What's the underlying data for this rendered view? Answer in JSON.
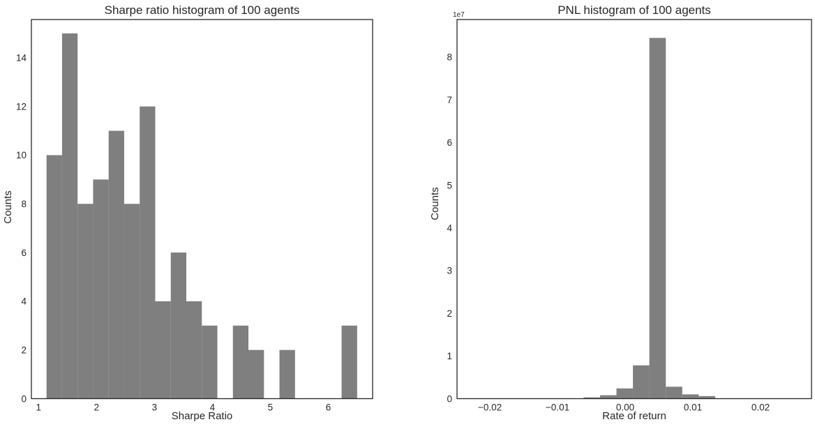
{
  "figure": {
    "background": "#ffffff",
    "bar_color": "#7f7f7f",
    "spine_color": "#262626",
    "text_color": "#262626"
  },
  "chart_data": [
    {
      "type": "bar",
      "subtype": "histogram",
      "title": "Sharpe ratio histogram of 100 agents",
      "xlabel": "Sharpe Ratio",
      "ylabel": "Counts",
      "y_offset_label": "",
      "bin_start": 1.137,
      "bin_width": 0.26805,
      "counts": [
        10,
        15,
        8,
        9,
        11,
        8,
        12,
        4,
        6,
        4,
        3,
        0,
        3,
        2,
        0,
        2,
        0,
        0,
        0,
        3
      ],
      "total_agents": 100,
      "xlim": [
        0.876,
        6.765
      ],
      "ylim": [
        0,
        15.57
      ],
      "xticks": [
        1,
        2,
        3,
        4,
        5,
        6
      ],
      "xtick_labels": [
        "1",
        "2",
        "3",
        "4",
        "5",
        "6"
      ],
      "yticks": [
        0,
        2,
        4,
        6,
        8,
        10,
        12,
        14
      ],
      "ytick_labels": [
        "0",
        "2",
        "4",
        "6",
        "8",
        "10",
        "12",
        "14"
      ],
      "grid": false,
      "legend": null
    },
    {
      "type": "bar",
      "subtype": "histogram",
      "title": "PNL histogram of 100 agents",
      "xlabel": "Rate of return",
      "ylabel": "Counts",
      "y_offset_label": "1e7",
      "y_unit": "1e7",
      "bin_start": -0.00615,
      "bin_width": 0.00243,
      "counts": [
        0.03,
        0.08,
        0.24,
        0.78,
        8.45,
        0.28,
        0.1,
        0.06
      ],
      "total_agents": 100,
      "xlim": [
        -0.02485,
        0.02753
      ],
      "ylim": [
        0,
        8.88
      ],
      "xticks": [
        -0.02,
        -0.01,
        0.0,
        0.01,
        0.02
      ],
      "xtick_labels": [
        "−0.02",
        "−0.01",
        "0.00",
        "0.01",
        "0.02"
      ],
      "yticks": [
        0,
        1,
        2,
        3,
        4,
        5,
        6,
        7,
        8
      ],
      "ytick_labels": [
        "0",
        "1",
        "2",
        "3",
        "4",
        "5",
        "6",
        "7",
        "8"
      ],
      "grid": false,
      "legend": null
    }
  ]
}
